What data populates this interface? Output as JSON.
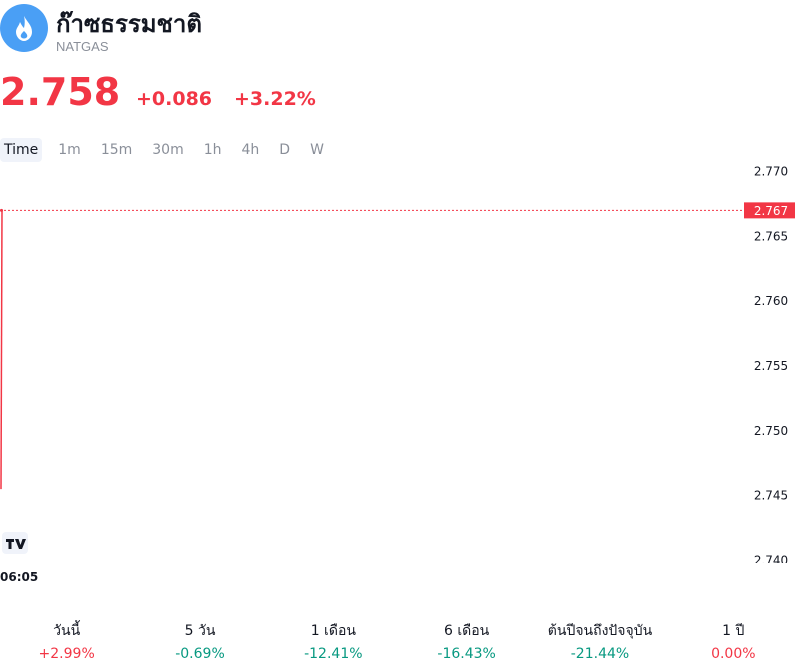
{
  "header": {
    "title": "ก๊าซธรรมชาติ",
    "symbol": "NATGAS",
    "price": "2.758",
    "change": "+0.086",
    "change_percent": "+3.22%"
  },
  "tabs": [
    "Time",
    "1m",
    "15m",
    "30m",
    "1h",
    "4h",
    "D",
    "W"
  ],
  "chart_data": {
    "type": "line",
    "categories": [
      null,
      "06:05"
    ],
    "series": [
      {
        "color": "#f23645",
        "values": [
          2.7455,
          2.767
        ]
      }
    ],
    "last_value": 2.767,
    "ylim": [
      2.7398,
      2.7705
    ],
    "yticks": [
      {
        "value": 2.74,
        "label": "2.740"
      },
      2.745,
      {
        "value": 2.75,
        "label": "2.750"
      },
      2.755,
      {
        "value": 2.76,
        "label": "2.760"
      },
      2.765,
      {
        "value": 2.77,
        "label": "2.770"
      }
    ]
  },
  "performance": [
    {
      "label": "วันนี้",
      "value": "+2.99%",
      "color": "#f23645"
    },
    {
      "label": "5 วัน",
      "value": "-0.69%",
      "color": "#089981"
    },
    {
      "label": "1 เดือน",
      "value": "-12.41%",
      "color": "#089981"
    },
    {
      "label": "6 เดือน",
      "value": "-16.43%",
      "color": "#089981"
    },
    {
      "label": "ต้นปีจนถึงปัจจุบัน",
      "value": "-21.44%",
      "color": "#089981"
    },
    {
      "label": "1 ปี",
      "value": "0.00%",
      "color": "#f23645"
    }
  ]
}
